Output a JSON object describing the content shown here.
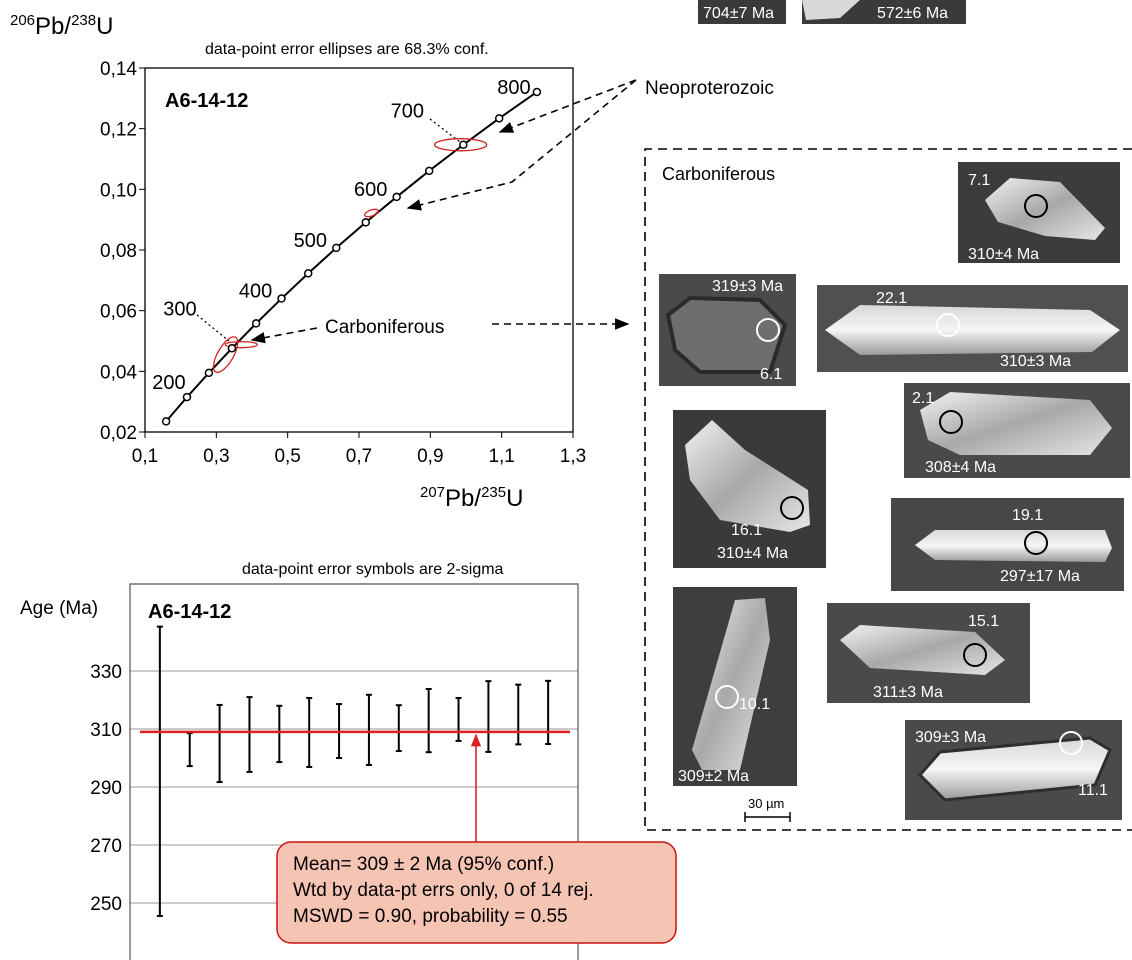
{
  "chart_data": [
    {
      "type": "concordia",
      "title": "data-point error ellipses are 68.3% conf.",
      "sample": "A6-14-12",
      "xlabel": [
        "207",
        "Pb/",
        "235",
        "U"
      ],
      "ylabel": [
        "206",
        "Pb/",
        "238",
        "U"
      ],
      "xlim": [
        0.1,
        1.3
      ],
      "xticks": [
        {
          "value": 0.1,
          "label": "0,1"
        },
        {
          "value": 0.3,
          "label": "0,3"
        },
        {
          "value": 0.5,
          "label": "0,5"
        },
        {
          "value": 0.7,
          "label": "0,7"
        },
        {
          "value": 0.9,
          "label": "0,9"
        },
        {
          "value": 1.1,
          "label": "1,1"
        },
        {
          "value": 1.3,
          "label": "1,3"
        }
      ],
      "ylim": [
        0.02,
        0.14
      ],
      "yticks": [
        {
          "value": 0.02,
          "label": "0,02"
        },
        {
          "value": 0.04,
          "label": "0,04"
        },
        {
          "value": 0.06,
          "label": "0,06"
        },
        {
          "value": 0.08,
          "label": "0,08"
        },
        {
          "value": 0.1,
          "label": "0,10"
        },
        {
          "value": 0.12,
          "label": "0,12"
        },
        {
          "value": 0.14,
          "label": "0,14"
        }
      ],
      "concordia": {
        "color": "#000000",
        "x": [
          0.1592,
          0.2177,
          0.2792,
          0.3437,
          0.4116,
          0.4828,
          0.5576,
          0.6363,
          0.7189,
          0.8056,
          0.8968,
          0.9925,
          1.0931,
          1.1988
        ],
        "y": [
          0.0235,
          0.0315,
          0.0395,
          0.0476,
          0.0558,
          0.064,
          0.0723,
          0.0807,
          0.0891,
          0.0975,
          0.1061,
          0.1147,
          0.1234,
          0.1321
        ],
        "point_labels": [
          null,
          200,
          null,
          300,
          null,
          400,
          null,
          500,
          null,
          600,
          null,
          700,
          null,
          800
        ]
      },
      "ellipse_color": "#d42020",
      "ellipses": [
        {
          "x": 0.326,
          "y": 0.0455,
          "sx": 0.056,
          "sy": 0.0026,
          "angle": -60
        },
        {
          "x": 0.37,
          "y": 0.0488,
          "sx": 0.045,
          "sy": 0.001,
          "angle": 0
        },
        {
          "x": 0.735,
          "y": 0.0922,
          "sx": 0.02,
          "sy": 0.001,
          "angle": -20
        },
        {
          "x": 0.985,
          "y": 0.1147,
          "sx": 0.073,
          "sy": 0.002,
          "angle": 0
        }
      ],
      "annotations": [
        "Carboniferous",
        "Neoproterozoic"
      ]
    },
    {
      "type": "errorbar",
      "title": "data-point error symbols are 2-sigma",
      "sample": "A6-14-12",
      "ylabel": "Age (Ma)",
      "ylim": [
        230,
        360
      ],
      "yticks": [
        250,
        270,
        290,
        310,
        330
      ],
      "grid": true,
      "color": "#000000",
      "values": [
        295.4,
        302.9,
        305,
        308.1,
        308.3,
        308.8,
        309.3,
        309.7,
        310.3,
        312.9,
        313.3,
        314.3,
        315,
        315.7
      ],
      "errors": [
        49.9,
        5.7,
        13.3,
        12.9,
        9.7,
        11.9,
        9.3,
        12.1,
        7.9,
        10.9,
        7.4,
        12.2,
        10.3,
        10.9
      ],
      "mean": 309,
      "mean_color": "#e02020",
      "box_lines": [
        "Mean= 309  ±  2 Ma (95% conf.)",
        "Wtd by data-pt errs only, 0 of 14 rej.",
        "MSWD = 0.90, probability = 0.55"
      ]
    }
  ],
  "zircon_panel": {
    "title": "Carboniferous",
    "scale": "30 µm",
    "top_grains": [
      "704±7 Ma",
      "572±6 Ma"
    ],
    "grains": [
      {
        "spot": "7.1",
        "age": "310±4 Ma"
      },
      {
        "spot": "6.1",
        "age": "319±3 Ma"
      },
      {
        "spot": "22.1",
        "age": "310±3 Ma"
      },
      {
        "spot": "2.1",
        "age": "308±4 Ma"
      },
      {
        "spot": "16.1",
        "age": "310±4 Ma"
      },
      {
        "spot": "19.1",
        "age": "297±17 Ma"
      },
      {
        "spot": "10.1",
        "age": "309±2 Ma"
      },
      {
        "spot": "15.1",
        "age": "311±3 Ma"
      },
      {
        "spot": "11.1",
        "age": "309±3 Ma"
      }
    ]
  }
}
